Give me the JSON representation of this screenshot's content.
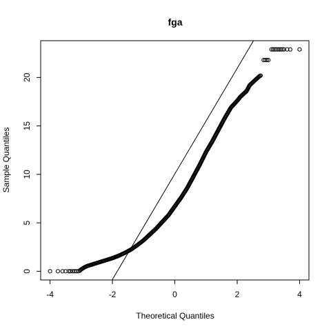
{
  "chart_data": {
    "type": "scatter",
    "title": "fga",
    "xlabel": "Theoretical Quantiles",
    "ylabel": "Sample Quantiles",
    "xlim": [
      -4.3,
      4.3
    ],
    "ylim": [
      -0.9,
      23.8
    ],
    "x_ticks": [
      -4,
      -2,
      0,
      2,
      4
    ],
    "y_ticks": [
      0,
      5,
      10,
      15,
      20
    ],
    "reference_line": {
      "slope": 5.45,
      "intercept": 10.05
    },
    "points": [
      [
        -4.0,
        0.0
      ],
      [
        -3.75,
        0.0
      ],
      [
        -3.6,
        0.0
      ],
      [
        -3.5,
        0.0
      ],
      [
        -3.4,
        0.0
      ],
      [
        -3.35,
        0.0
      ],
      [
        -3.28,
        0.0
      ],
      [
        -3.22,
        0.0
      ],
      [
        -3.16,
        0.0
      ],
      [
        -3.1,
        0.0
      ],
      [
        -3.05,
        0.05
      ],
      [
        -3.0,
        0.2
      ],
      [
        -2.9,
        0.4
      ],
      [
        -2.8,
        0.55
      ],
      [
        -2.6,
        0.75
      ],
      [
        -2.4,
        0.95
      ],
      [
        -2.2,
        1.15
      ],
      [
        -2.0,
        1.35
      ],
      [
        -1.8,
        1.6
      ],
      [
        -1.6,
        1.9
      ],
      [
        -1.4,
        2.25
      ],
      [
        -1.2,
        2.7
      ],
      [
        -1.0,
        3.2
      ],
      [
        -0.8,
        3.8
      ],
      [
        -0.6,
        4.4
      ],
      [
        -0.4,
        5.1
      ],
      [
        -0.2,
        5.8
      ],
      [
        0.0,
        6.7
      ],
      [
        0.2,
        7.6
      ],
      [
        0.4,
        8.6
      ],
      [
        0.6,
        9.8
      ],
      [
        0.8,
        11.0
      ],
      [
        1.0,
        12.3
      ],
      [
        1.2,
        13.4
      ],
      [
        1.4,
        14.6
      ],
      [
        1.6,
        15.8
      ],
      [
        1.8,
        16.9
      ],
      [
        2.0,
        17.6
      ],
      [
        2.1,
        18.0
      ],
      [
        2.2,
        18.3
      ],
      [
        2.3,
        18.6
      ],
      [
        2.4,
        19.2
      ],
      [
        2.5,
        19.5
      ],
      [
        2.6,
        19.8
      ],
      [
        2.7,
        20.1
      ],
      [
        2.75,
        20.2
      ],
      [
        2.85,
        21.8
      ],
      [
        2.9,
        21.8
      ],
      [
        2.95,
        21.8
      ],
      [
        3.0,
        21.8
      ],
      [
        3.1,
        22.9
      ],
      [
        3.15,
        22.9
      ],
      [
        3.2,
        22.9
      ],
      [
        3.25,
        22.9
      ],
      [
        3.3,
        22.9
      ],
      [
        3.35,
        22.9
      ],
      [
        3.4,
        22.9
      ],
      [
        3.45,
        22.9
      ],
      [
        3.5,
        22.9
      ],
      [
        3.6,
        22.9
      ],
      [
        3.7,
        22.9
      ],
      [
        4.0,
        22.9
      ]
    ]
  }
}
